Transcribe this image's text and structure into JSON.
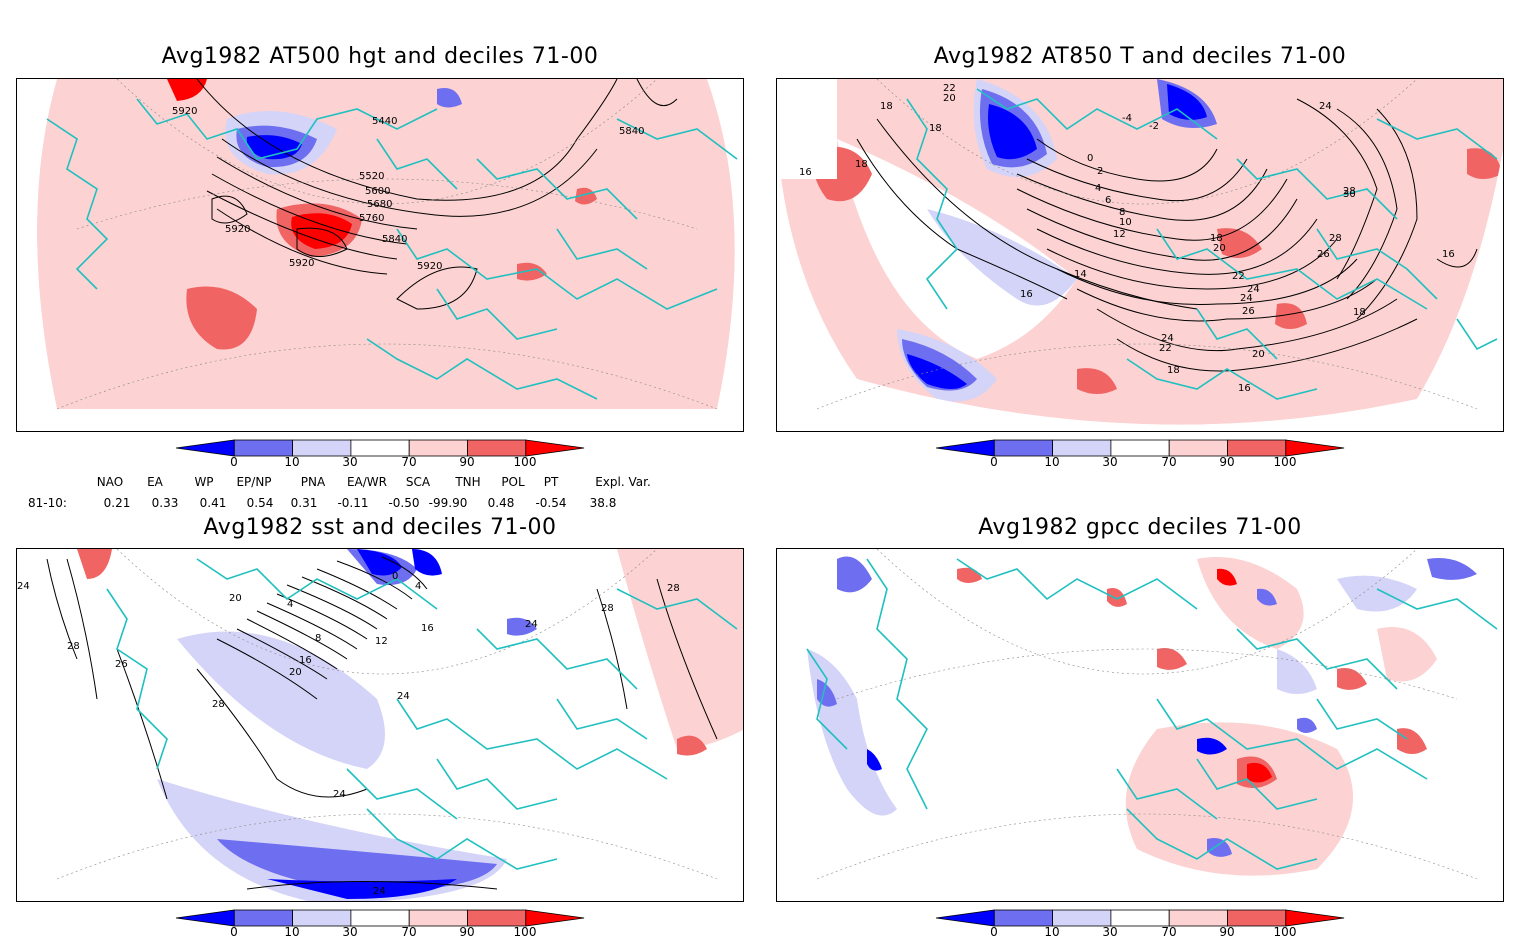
{
  "panels": [
    {
      "title": "Avg1982 AT500 hgt and deciles 71-00",
      "contour_labels": [
        "5920",
        "5440",
        "5840",
        "5520",
        "5600",
        "5680",
        "5760",
        "5840",
        "5920",
        "5920",
        "5920"
      ]
    },
    {
      "title": "Avg1982 AT850 T and deciles 71-00",
      "contour_labels": [
        "22",
        "20",
        "18",
        "18",
        "16",
        "18",
        "-4",
        "-2",
        "0",
        "2",
        "4",
        "6",
        "8",
        "10",
        "12",
        "14",
        "16",
        "18",
        "20",
        "22",
        "24",
        "26",
        "28",
        "30",
        "24",
        "28",
        "26",
        "24",
        "22",
        "20",
        "18",
        "16",
        "18",
        "16",
        "24"
      ]
    },
    {
      "title": "Avg1982 sst and deciles 71-00",
      "contour_labels": [
        "24",
        "28",
        "20",
        "4",
        "8",
        "12",
        "16",
        "20",
        "24",
        "26",
        "28",
        "24",
        "28",
        "28",
        "24",
        "0",
        "4",
        "16",
        "24"
      ]
    },
    {
      "title": "Avg1982 gpcc deciles 71-00",
      "contour_labels": []
    }
  ],
  "colorbar": {
    "tick_labels": [
      "0",
      "10",
      "30",
      "70",
      "90",
      "100"
    ],
    "colors": [
      "#0000ff",
      "#6e6ef0",
      "#d4d4f8",
      "#ffffff",
      "#fcd2d2",
      "#f06464",
      "#ff0000"
    ]
  },
  "indices": {
    "row_label": "81-10:",
    "headers": [
      "NAO",
      "EA",
      "WP",
      "EP/NP",
      "PNA",
      "EA/WR",
      "SCA",
      "TNH",
      "POL",
      "PT",
      "Expl. Var."
    ],
    "values": [
      "0.21",
      "0.33",
      "0.41",
      "0.54",
      "0.31",
      "-0.11",
      "-0.50",
      "-99.90",
      "0.48",
      "-0.54",
      "38.8"
    ]
  },
  "colors": {
    "coast": "#20c0c0",
    "strong_blue": "#0000ff",
    "mid_blue": "#6e6ef0",
    "light_blue": "#d4d4f8",
    "light_red": "#fcd2d2",
    "mid_red": "#f06464",
    "strong_red": "#ff0000"
  }
}
